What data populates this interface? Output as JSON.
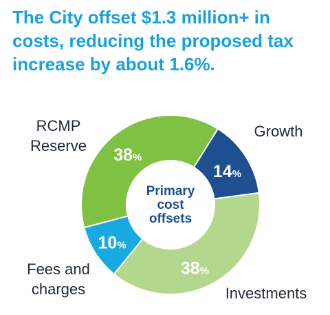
{
  "headline_lines": [
    "The City offset $1.3 million+ in",
    "costs, reducing the proposed tax",
    "increase by about 1.6%."
  ],
  "chart_data": {
    "type": "pie",
    "variant": "donut",
    "center_label_lines": [
      "Primary",
      "cost",
      "offsets"
    ],
    "slices": [
      {
        "category_lines": [
          "Growth"
        ],
        "value": 14,
        "value_text": "14",
        "unit": "%",
        "color": "#1d4f91"
      },
      {
        "category_lines": [
          "Investments"
        ],
        "value": 38,
        "value_text": "38",
        "unit": "%",
        "color": "#b3d88d"
      },
      {
        "category_lines": [
          "Fees and",
          "charges"
        ],
        "value": 10,
        "value_text": "10",
        "unit": "%",
        "color": "#18a9e1"
      },
      {
        "category_lines": [
          "RCMP",
          "Reserve"
        ],
        "value": 38,
        "value_text": "38",
        "unit": "%",
        "color": "#7fc142"
      }
    ]
  }
}
